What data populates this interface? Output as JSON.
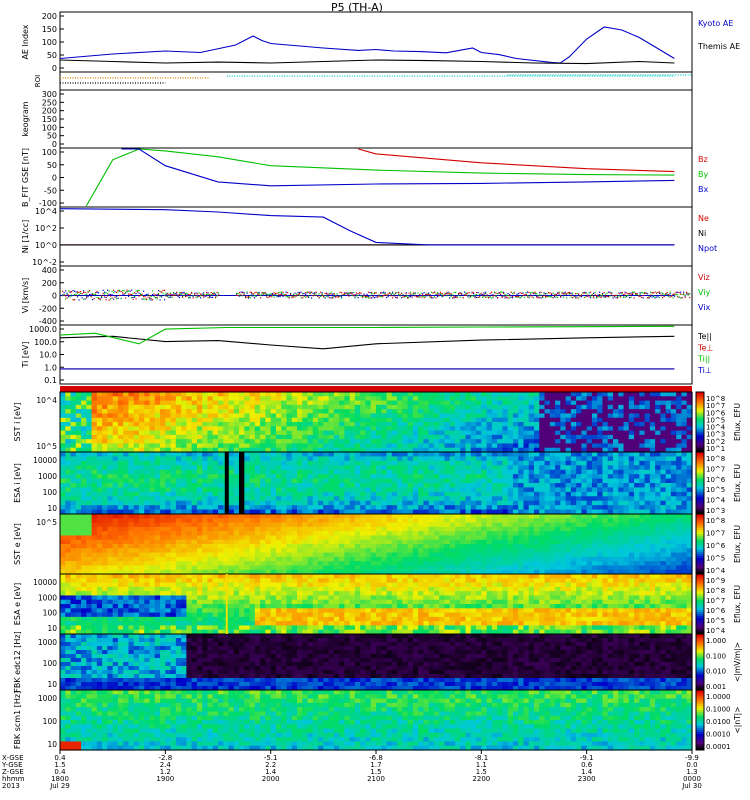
{
  "title": "P5 (TH-A)",
  "colors": {
    "red": "#d40000",
    "green": "#00c000",
    "blue": "#0000c8",
    "black": "#000000",
    "cyan": "#00c8c8",
    "orange": "#e08000"
  },
  "chart_data": [
    {
      "type": "line",
      "title": "P5 (TH-A)",
      "ylabel": "AE Index",
      "ylim": [
        0,
        200
      ],
      "yticks": [
        "200",
        "150",
        "100",
        "50",
        "0"
      ],
      "series": [
        {
          "name": "Kyoto AE",
          "color": "#0000c8",
          "x": [
            1800,
            1830,
            1900,
            1920,
            1940,
            1950,
            1955,
            2000,
            2010,
            2030,
            2050,
            2100,
            2110,
            2125,
            2140,
            2155,
            2200,
            2210,
            2220,
            2240,
            2245,
            2250,
            2300,
            2310,
            2320,
            2330,
            2340,
            2350
          ],
          "y": [
            45,
            60,
            70,
            65,
            90,
            120,
            105,
            95,
            90,
            80,
            72,
            75,
            70,
            68,
            64,
            80,
            65,
            58,
            45,
            32,
            30,
            50,
            110,
            150,
            140,
            115,
            80,
            45
          ]
        },
        {
          "name": "Themis AE",
          "color": "#000000",
          "x": [
            1800,
            1830,
            1900,
            1930,
            2000,
            2030,
            2100,
            2130,
            2200,
            2230,
            2300,
            2330,
            2350
          ],
          "y": [
            40,
            35,
            30,
            33,
            30,
            35,
            40,
            38,
            35,
            30,
            28,
            35,
            30
          ]
        }
      ]
    },
    {
      "type": "line",
      "ylabel": "ROI",
      "series": [
        {
          "name": "ROI flags",
          "color": "#e08000",
          "x": [
            1800,
            1925
          ],
          "y": [
            1,
            1
          ]
        },
        {
          "name": "ROI flags 2",
          "color": "#000000",
          "x": [
            1800,
            1900
          ],
          "y": [
            2,
            2
          ]
        },
        {
          "name": "ROI flags 3",
          "color": "#00c8c8",
          "x": [
            1935,
            2350
          ],
          "y": [
            1,
            1
          ]
        }
      ]
    },
    {
      "type": "line",
      "ylabel": "keogram",
      "yticks": [
        "300",
        "250",
        "200",
        "150",
        "100",
        "50",
        "0"
      ],
      "series": []
    },
    {
      "type": "line",
      "ylabel": "B_FIT GSE [nT]",
      "ylim": [
        -100,
        100
      ],
      "yticks": [
        "100",
        "50",
        "0",
        "-50",
        "-100"
      ],
      "series": [
        {
          "name": "Bz",
          "color": "#d40000",
          "x": [
            2050,
            2100,
            2200,
            2300,
            2350
          ],
          "y": [
            100,
            80,
            50,
            30,
            20
          ]
        },
        {
          "name": "By",
          "color": "#00c000",
          "x": [
            1815,
            1830,
            1845,
            1900,
            1930,
            2000,
            2100,
            2200,
            2300,
            2350
          ],
          "y": [
            -100,
            60,
            100,
            90,
            70,
            40,
            25,
            15,
            10,
            8
          ]
        },
        {
          "name": "Bx",
          "color": "#0000c8",
          "x": [
            1835,
            1845,
            1900,
            1930,
            2000,
            2100,
            2200,
            2300,
            2350
          ],
          "y": [
            100,
            100,
            40,
            -15,
            -28,
            -22,
            -20,
            -15,
            -10
          ]
        }
      ]
    },
    {
      "type": "line",
      "ylabel": "Ni [1/cc]",
      "yscale": "log",
      "yticks": [
        "10^4",
        "10^2",
        "10^0",
        "10^-2"
      ],
      "series": [
        {
          "name": "Ne",
          "color": "#d40000",
          "x": [
            1800,
            2350
          ],
          "y": [
            1,
            1
          ]
        },
        {
          "name": "Ni",
          "color": "#000000",
          "x": [
            1800,
            2350
          ],
          "y": [
            1,
            1
          ]
        },
        {
          "name": "Npot",
          "color": "#0000c8",
          "x": [
            1800,
            1900,
            1930,
            2000,
            2030,
            2045,
            2100,
            2130,
            2350
          ],
          "y": [
            20000,
            15000,
            8000,
            3000,
            2000,
            50,
            2,
            1,
            1
          ]
        }
      ]
    },
    {
      "type": "line",
      "ylabel": "Vi [km/s]",
      "ylim": [
        -500,
        500
      ],
      "yticks": [
        "400",
        "200",
        "0",
        "-200",
        "-400"
      ],
      "series": [
        {
          "name": "Viz",
          "color": "#d40000",
          "x": [
            1800,
            2350
          ],
          "y": [
            0,
            0
          ]
        },
        {
          "name": "Viy",
          "color": "#00c000",
          "x": [
            1800,
            2350
          ],
          "y": [
            0,
            0
          ]
        },
        {
          "name": "Vix",
          "color": "#0000c8",
          "x": [
            1800,
            2350
          ],
          "y": [
            0,
            0
          ]
        }
      ]
    },
    {
      "type": "line",
      "ylabel": "Ti [eV]",
      "yscale": "log",
      "yticks": [
        "1000.0",
        "100.0",
        "10.0",
        "1.0",
        "0.1"
      ],
      "series": [
        {
          "name": "Te||",
          "color": "#000000",
          "x": [
            1800,
            1830,
            1900,
            1930,
            2000,
            2030,
            2100,
            2200,
            2300,
            2350
          ],
          "y": [
            300,
            400,
            150,
            180,
            80,
            40,
            100,
            200,
            300,
            400
          ]
        },
        {
          "name": "Te⊥",
          "color": "#d40000",
          "x": [
            1800,
            2350
          ],
          "y": [
            1,
            1
          ]
        },
        {
          "name": "Ti||",
          "color": "#00c000",
          "x": [
            1800,
            1820,
            1845,
            1900,
            1935,
            2000,
            2100,
            2200,
            2300,
            2350
          ],
          "y": [
            500,
            700,
            100,
            1500,
            2000,
            2000,
            2000,
            2200,
            2300,
            2500
          ]
        },
        {
          "name": "Ti⊥",
          "color": "#0000c8",
          "x": [
            1800,
            2350
          ],
          "y": [
            1,
            1
          ]
        }
      ]
    },
    {
      "type": "heatmap",
      "ylabel": "SST i [eV]",
      "yticks": [
        "10^4",
        "10^5"
      ],
      "zlabel": "Eflux, EFU",
      "cticks": [
        "10^8",
        "10^7",
        "10^6",
        "10^5",
        "10^4",
        "10^3",
        "10^2",
        "10^1"
      ]
    },
    {
      "type": "heatmap",
      "ylabel": "ESA i [eV]",
      "yticks": [
        "10000",
        "1000",
        "100",
        "10"
      ],
      "zlabel": "Eflux, EFU",
      "cticks": [
        "10^8",
        "10^7",
        "10^6",
        "10^5",
        "10^4",
        "10^3"
      ]
    },
    {
      "type": "heatmap",
      "ylabel": "SST e [eV]",
      "yticks": [
        "10^5"
      ],
      "zlabel": "Eflux, EFU",
      "cticks": [
        "10^8",
        "10^7",
        "10^6",
        "10^5",
        "10^4"
      ]
    },
    {
      "type": "heatmap",
      "ylabel": "ESA e [eV]",
      "yticks": [
        "10000",
        "1000",
        "100",
        "10"
      ],
      "zlabel": "Eflux, EFU",
      "cticks": [
        "10^9",
        "10^8",
        "10^7",
        "10^6",
        "10^5",
        "10^4"
      ]
    },
    {
      "type": "heatmap",
      "ylabel": "FBK edc12 [Hz]",
      "yticks": [
        "1000",
        "100",
        "10"
      ],
      "zlabel": "<|mV/m|>",
      "cticks": [
        "1.000",
        "0.100",
        "0.010",
        "0.001"
      ]
    },
    {
      "type": "heatmap",
      "ylabel": "FBK scm1 [Hz]",
      "yticks": [
        "1000",
        "100",
        "10"
      ],
      "zlabel": "<|nT|>",
      "cticks": [
        "1.0000",
        "0.1000",
        "0.0100",
        "0.0010",
        "0.0001"
      ]
    }
  ],
  "xaxis": {
    "row_labels": [
      "X-GSE",
      "Y-GSE",
      "Z-GSE",
      "hhmm",
      "2013"
    ],
    "ticks": [
      {
        "rows": [
          "0.4",
          "1.5",
          "0.4",
          "1800",
          "Jul 29"
        ]
      },
      {
        "rows": [
          "-2.8",
          "2.4",
          "1.2",
          "1900",
          ""
        ]
      },
      {
        "rows": [
          "-5.1",
          "2.2",
          "1.4",
          "2000",
          ""
        ]
      },
      {
        "rows": [
          "-6.8",
          "1.7",
          "1.5",
          "2100",
          ""
        ]
      },
      {
        "rows": [
          "-8.1",
          "1.1",
          "1.5",
          "2200",
          ""
        ]
      },
      {
        "rows": [
          "-9.1",
          "0.6",
          "1.4",
          "2300",
          ""
        ]
      },
      {
        "rows": [
          "-9.9",
          "0.0",
          "1.3",
          "0000",
          "Jul 30"
        ]
      }
    ]
  }
}
